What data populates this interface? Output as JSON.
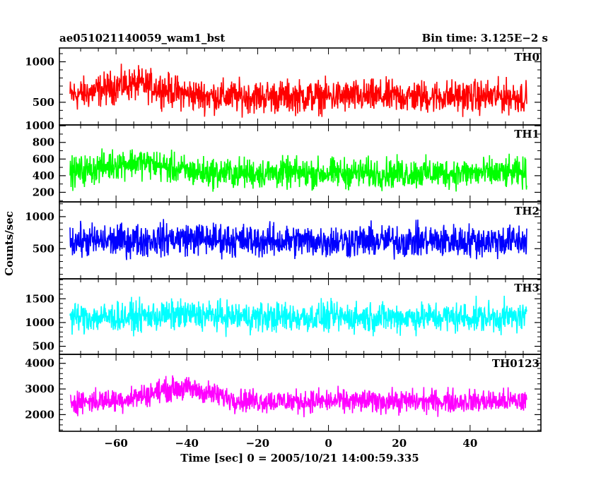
{
  "header": {
    "title": "ae051021140059_wam1_bst",
    "bin_time": "Bin time: 3.125E−2 s"
  },
  "chart_data": {
    "type": "line",
    "xlabel": "Time [sec] 0 = 2005/10/21 14:00:59.335",
    "ylabel": "Counts/sec",
    "xlim": [
      -76,
      60
    ],
    "x_range": [
      -73,
      56
    ],
    "x_ticks": [
      -60,
      -40,
      -20,
      0,
      20,
      40
    ],
    "x_tick_labels": [
      "−60",
      "−40",
      "−20",
      "0",
      "20",
      "40"
    ],
    "panels": [
      {
        "label": "TH0",
        "color": "#ff0000",
        "ylim": [
          220,
          1170
        ],
        "yticks": [
          500,
          1000
        ],
        "ytick_labels": [
          "500",
          "1000"
        ],
        "minor": 100,
        "base": 570,
        "noise": 300,
        "peak_time": -55,
        "peak_amp": 150
      },
      {
        "label": "TH1",
        "color": "#00ff00",
        "ylim": [
          85,
          1010
        ],
        "yticks": [
          200,
          400,
          600,
          800,
          1000
        ],
        "ytick_labels": [
          "200",
          "400",
          "600",
          "800",
          "1000"
        ],
        "minor": 100,
        "base": 430,
        "noise": 270,
        "peak_time": -55,
        "peak_amp": 130
      },
      {
        "label": "TH2",
        "color": "#0000ff",
        "ylim": [
          30,
          1230
        ],
        "yticks": [
          500,
          1000
        ],
        "ytick_labels": [
          "500",
          "1000"
        ],
        "minor": 100,
        "base": 620,
        "noise": 380,
        "peak_time": -40,
        "peak_amp": 40
      },
      {
        "label": "TH3",
        "color": "#00ffff",
        "ylim": [
          330,
          1920
        ],
        "yticks": [
          500,
          1000,
          1500
        ],
        "ytick_labels": [
          "500",
          "1000",
          "1500"
        ],
        "minor": 100,
        "base": 1110,
        "noise": 470,
        "peak_time": -40,
        "peak_amp": 50
      },
      {
        "label": "TH0123",
        "color": "#ff00ff",
        "ylim": [
          1350,
          4350
        ],
        "yticks": [
          2000,
          3000,
          4000
        ],
        "ytick_labels": [
          "2000",
          "3000",
          "4000"
        ],
        "minor": 200,
        "base": 2520,
        "noise": 680,
        "peak_time": -42,
        "peak_amp": 500
      }
    ]
  }
}
